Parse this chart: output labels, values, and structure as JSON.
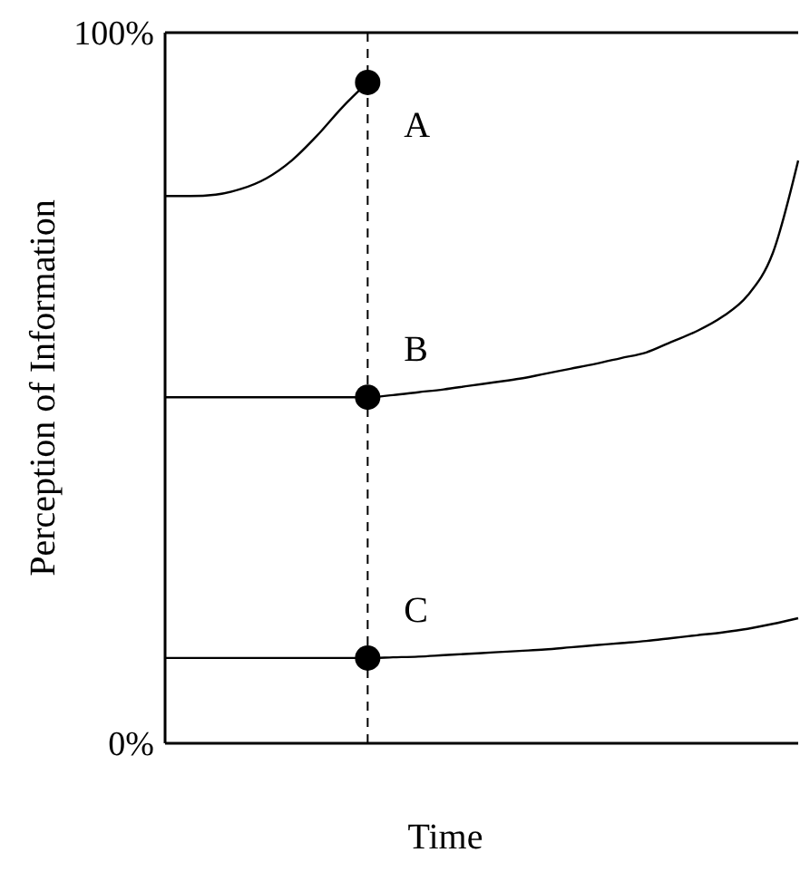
{
  "chart_data": {
    "type": "line",
    "xlabel": "Time",
    "ylabel": "Perception of Information",
    "categories": [
      null,
      null,
      null,
      null,
      null,
      null,
      null,
      null,
      null,
      null,
      null,
      null,
      null,
      null,
      null,
      null,
      null,
      null,
      null,
      null,
      null,
      null,
      null,
      null,
      null,
      null
    ],
    "series": [
      {
        "name": "A",
        "color": "#000000",
        "values": [
          77,
          77,
          77.2,
          78,
          79.5,
          82,
          85.5,
          89.5,
          93,
          null,
          null,
          null,
          null,
          null,
          null,
          null,
          null,
          null,
          null,
          null,
          null,
          null,
          null,
          null,
          null,
          null
        ]
      },
      {
        "name": "B",
        "color": "#000000",
        "values": [
          48.7,
          48.7,
          48.7,
          48.7,
          48.7,
          48.7,
          48.7,
          48.7,
          48.7,
          49,
          49.4,
          49.8,
          50.3,
          50.8,
          51.3,
          52,
          52.7,
          53.4,
          54.2,
          55,
          56.5,
          58,
          60,
          63,
          69,
          82
        ]
      },
      {
        "name": "C",
        "color": "#000000",
        "values": [
          12,
          12,
          12,
          12,
          12,
          12,
          12,
          12,
          12,
          12.1,
          12.2,
          12.4,
          12.6,
          12.8,
          13,
          13.2,
          13.5,
          13.8,
          14.1,
          14.4,
          14.8,
          15.2,
          15.6,
          16.1,
          16.8,
          17.6
        ]
      },
      {
        "type": "scatter",
        "color": "#000000",
        "marker": "circle",
        "values": [
          null,
          null,
          null,
          null,
          null,
          null,
          null,
          null,
          93,
          null,
          null,
          null,
          null,
          null,
          null,
          null,
          null,
          null,
          null,
          null,
          null,
          null,
          null,
          null,
          null,
          null
        ]
      },
      {
        "type": "scatter",
        "color": "#000000",
        "marker": "circle",
        "values": [
          null,
          null,
          null,
          null,
          null,
          null,
          null,
          null,
          48.7,
          null,
          null,
          null,
          null,
          null,
          null,
          null,
          null,
          null,
          null,
          null,
          null,
          null,
          null,
          null,
          null,
          null
        ]
      },
      {
        "type": "scatter",
        "color": "#000000",
        "marker": "circle",
        "values": [
          null,
          null,
          null,
          null,
          null,
          null,
          null,
          null,
          12,
          null,
          null,
          null,
          null,
          null,
          null,
          null,
          null,
          null,
          null,
          null,
          null,
          null,
          null,
          null,
          null,
          null
        ]
      }
    ],
    "ylim": [
      0,
      100
    ],
    "yticks": [
      {
        "value": 0,
        "label": "0%"
      },
      {
        "value": 100,
        "label": "100%"
      }
    ],
    "tick_labels": "y",
    "marker": "none",
    "line_style": "solid"
  }
}
